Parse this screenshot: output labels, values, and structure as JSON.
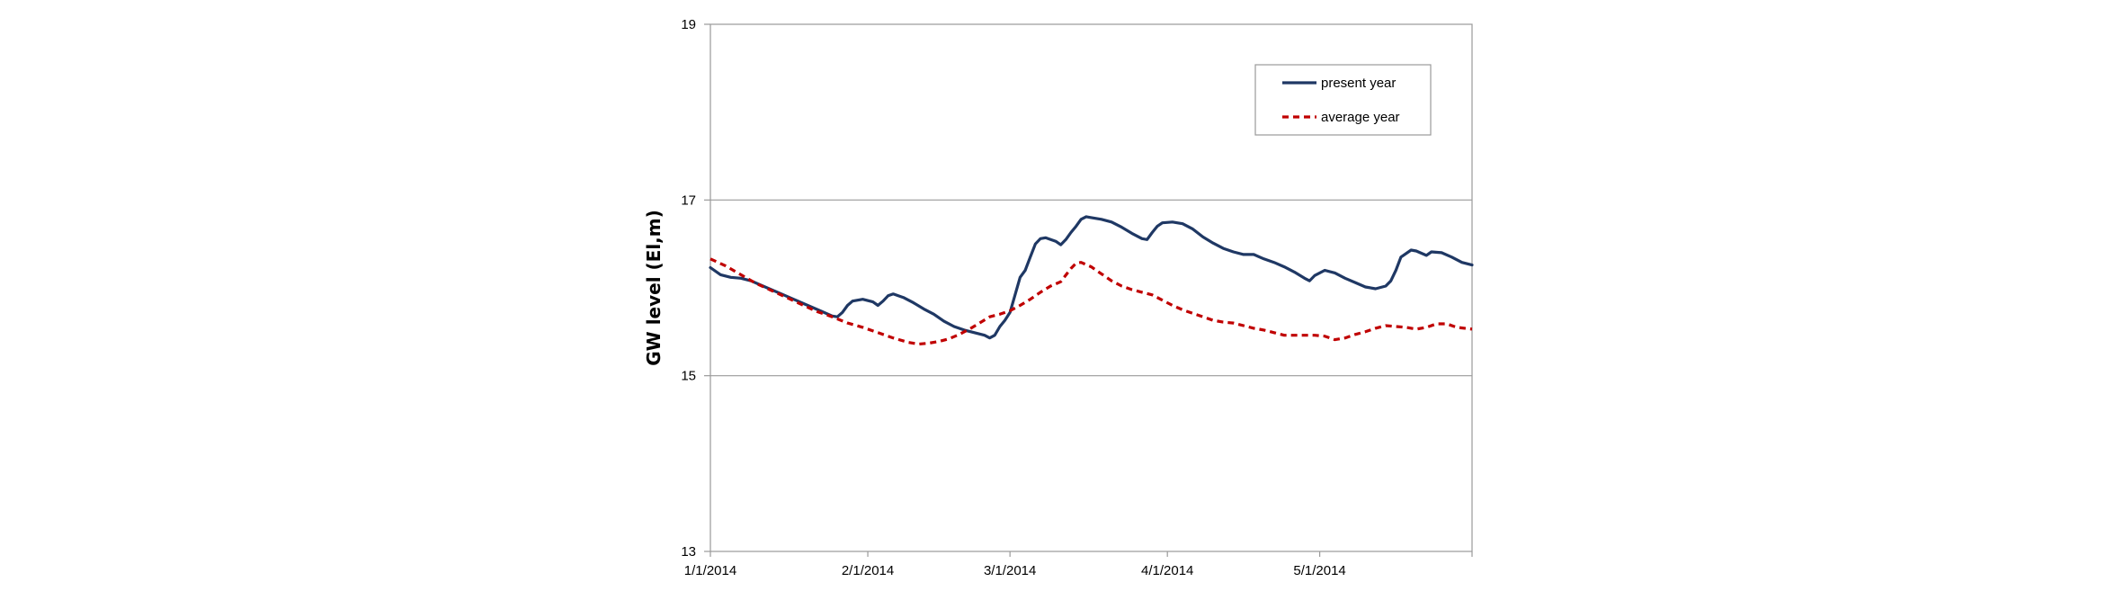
{
  "chart_data": {
    "type": "line",
    "title": "",
    "xlabel": "",
    "ylabel": "GW level (El,m)",
    "ylim": [
      13,
      19
    ],
    "yticks": [
      "13",
      "15",
      "17",
      "19"
    ],
    "xlim": [
      0,
      150
    ],
    "xticks": [
      {
        "label": "1/1/2014",
        "day": 0
      },
      {
        "label": "2/1/2014",
        "day": 31
      },
      {
        "label": "3/1/2014",
        "day": 59
      },
      {
        "label": "4/1/2014",
        "day": 90
      },
      {
        "label": "5/1/2014",
        "day": 120
      }
    ],
    "grid": "horizontal",
    "legend_position": "top-right",
    "series": [
      {
        "name": "present year",
        "color": "#1f3864",
        "style": "solid",
        "points": [
          [
            0,
            16.23
          ],
          [
            2,
            16.15
          ],
          [
            4,
            16.12
          ],
          [
            6,
            16.11
          ],
          [
            8,
            16.08
          ],
          [
            10,
            16.03
          ],
          [
            12,
            15.98
          ],
          [
            14,
            15.93
          ],
          [
            16,
            15.88
          ],
          [
            18,
            15.83
          ],
          [
            20,
            15.78
          ],
          [
            22,
            15.73
          ],
          [
            24,
            15.68
          ],
          [
            25,
            15.67
          ],
          [
            26,
            15.72
          ],
          [
            27,
            15.8
          ],
          [
            28,
            15.85
          ],
          [
            30,
            15.87
          ],
          [
            32,
            15.84
          ],
          [
            33,
            15.8
          ],
          [
            34,
            15.85
          ],
          [
            35,
            15.91
          ],
          [
            36,
            15.93
          ],
          [
            38,
            15.89
          ],
          [
            40,
            15.83
          ],
          [
            42,
            15.76
          ],
          [
            44,
            15.7
          ],
          [
            46,
            15.62
          ],
          [
            48,
            15.56
          ],
          [
            50,
            15.52
          ],
          [
            52,
            15.49
          ],
          [
            54,
            15.46
          ],
          [
            55,
            15.43
          ],
          [
            56,
            15.46
          ],
          [
            57,
            15.56
          ],
          [
            58,
            15.63
          ],
          [
            59,
            15.72
          ],
          [
            60,
            15.92
          ],
          [
            61,
            16.12
          ],
          [
            62,
            16.2
          ],
          [
            63,
            16.35
          ],
          [
            64,
            16.5
          ],
          [
            65,
            16.56
          ],
          [
            66,
            16.57
          ],
          [
            68,
            16.53
          ],
          [
            69,
            16.49
          ],
          [
            70,
            16.55
          ],
          [
            71,
            16.63
          ],
          [
            72,
            16.7
          ],
          [
            73,
            16.78
          ],
          [
            74,
            16.81
          ],
          [
            75,
            16.8
          ],
          [
            77,
            16.78
          ],
          [
            79,
            16.75
          ],
          [
            81,
            16.69
          ],
          [
            83,
            16.62
          ],
          [
            85,
            16.56
          ],
          [
            86,
            16.55
          ],
          [
            87,
            16.63
          ],
          [
            88,
            16.7
          ],
          [
            89,
            16.74
          ],
          [
            91,
            16.75
          ],
          [
            93,
            16.73
          ],
          [
            95,
            16.67
          ],
          [
            97,
            16.58
          ],
          [
            99,
            16.51
          ],
          [
            101,
            16.45
          ],
          [
            103,
            16.41
          ],
          [
            105,
            16.38
          ],
          [
            107,
            16.38
          ],
          [
            109,
            16.33
          ],
          [
            111,
            16.29
          ],
          [
            113,
            16.24
          ],
          [
            115,
            16.18
          ],
          [
            117,
            16.11
          ],
          [
            118,
            16.08
          ],
          [
            119,
            16.14
          ],
          [
            121,
            16.2
          ],
          [
            123,
            16.17
          ],
          [
            125,
            16.11
          ],
          [
            127,
            16.06
          ],
          [
            129,
            16.01
          ],
          [
            131,
            15.99
          ],
          [
            133,
            16.02
          ],
          [
            134,
            16.08
          ],
          [
            135,
            16.2
          ],
          [
            136,
            16.35
          ],
          [
            138,
            16.43
          ],
          [
            139,
            16.42
          ],
          [
            141,
            16.37
          ],
          [
            142,
            16.41
          ],
          [
            144,
            16.4
          ],
          [
            146,
            16.35
          ],
          [
            148,
            16.29
          ],
          [
            150,
            16.26
          ]
        ]
      },
      {
        "name": "average year",
        "color": "#c00000",
        "style": "dashed",
        "points": [
          [
            0,
            16.33
          ],
          [
            3,
            16.25
          ],
          [
            6,
            16.15
          ],
          [
            9,
            16.05
          ],
          [
            12,
            15.97
          ],
          [
            15,
            15.89
          ],
          [
            18,
            15.81
          ],
          [
            21,
            15.73
          ],
          [
            24,
            15.67
          ],
          [
            27,
            15.6
          ],
          [
            30,
            15.55
          ],
          [
            33,
            15.49
          ],
          [
            36,
            15.43
          ],
          [
            39,
            15.38
          ],
          [
            41,
            15.36
          ],
          [
            43,
            15.37
          ],
          [
            45,
            15.39
          ],
          [
            47,
            15.42
          ],
          [
            49,
            15.47
          ],
          [
            51,
            15.53
          ],
          [
            53,
            15.6
          ],
          [
            55,
            15.67
          ],
          [
            57,
            15.7
          ],
          [
            59,
            15.74
          ],
          [
            61,
            15.8
          ],
          [
            63,
            15.87
          ],
          [
            65,
            15.95
          ],
          [
            67,
            16.02
          ],
          [
            69,
            16.07
          ],
          [
            71,
            16.22
          ],
          [
            72,
            16.28
          ],
          [
            73,
            16.29
          ],
          [
            75,
            16.24
          ],
          [
            77,
            16.16
          ],
          [
            79,
            16.08
          ],
          [
            81,
            16.02
          ],
          [
            83,
            15.98
          ],
          [
            85,
            15.95
          ],
          [
            87,
            15.92
          ],
          [
            89,
            15.86
          ],
          [
            91,
            15.8
          ],
          [
            93,
            15.75
          ],
          [
            95,
            15.71
          ],
          [
            97,
            15.67
          ],
          [
            99,
            15.63
          ],
          [
            101,
            15.61
          ],
          [
            103,
            15.6
          ],
          [
            105,
            15.57
          ],
          [
            107,
            15.54
          ],
          [
            109,
            15.52
          ],
          [
            111,
            15.49
          ],
          [
            113,
            15.46
          ],
          [
            115,
            15.46
          ],
          [
            117,
            15.46
          ],
          [
            119,
            15.46
          ],
          [
            121,
            15.45
          ],
          [
            123,
            15.41
          ],
          [
            125,
            15.43
          ],
          [
            127,
            15.47
          ],
          [
            129,
            15.5
          ],
          [
            131,
            15.54
          ],
          [
            133,
            15.57
          ],
          [
            135,
            15.56
          ],
          [
            137,
            15.55
          ],
          [
            139,
            15.53
          ],
          [
            141,
            15.55
          ],
          [
            143,
            15.59
          ],
          [
            145,
            15.59
          ],
          [
            147,
            15.55
          ],
          [
            150,
            15.53
          ]
        ]
      }
    ]
  }
}
